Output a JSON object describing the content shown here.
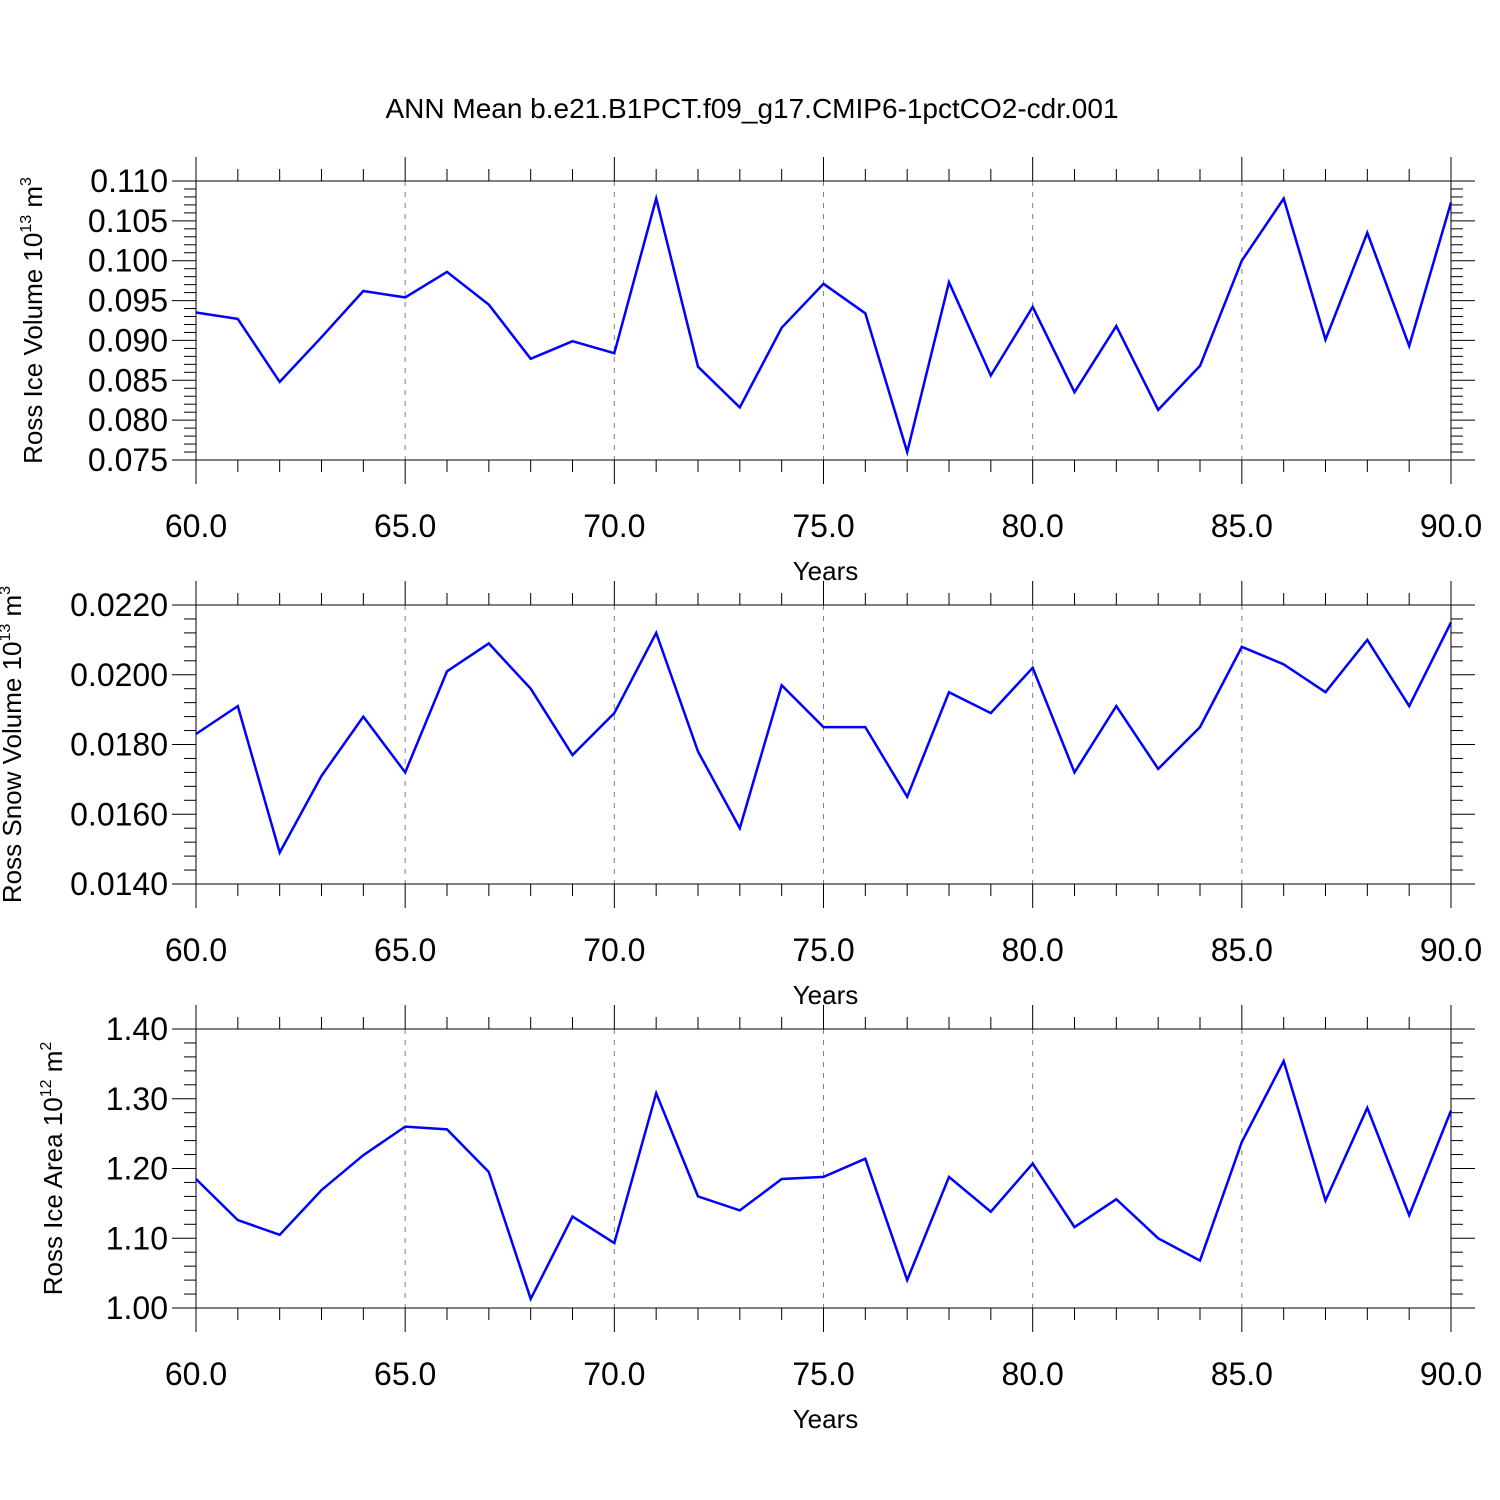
{
  "title": "ANN Mean b.e21.B1PCT.f09_g17.CMIP6-1pctCO2-cdr.001",
  "colors": {
    "line": "#0000ff",
    "axis": "#000000",
    "grid": "#808080"
  },
  "chart_data": [
    {
      "type": "line",
      "xlabel": "Years",
      "ylabel": {
        "text": "Ross Ice Volume 10",
        "exp": "13",
        "unit": " m",
        "unit_exp": "3"
      },
      "xlim": [
        60,
        90
      ],
      "ylim": [
        0.075,
        0.11
      ],
      "xticks": [
        60,
        65,
        70,
        75,
        80,
        85,
        90
      ],
      "xtick_labels": [
        "60.0",
        "65.0",
        "70.0",
        "75.0",
        "80.0",
        "85.0",
        "90.0"
      ],
      "yticks": [
        0.075,
        0.08,
        0.085,
        0.09,
        0.095,
        0.1,
        0.105,
        0.11
      ],
      "ytick_labels": [
        "0.075",
        "0.080",
        "0.085",
        "0.090",
        "0.095",
        "0.100",
        "0.105",
        "0.110"
      ],
      "x": [
        60,
        61,
        62,
        63,
        64,
        65,
        66,
        67,
        68,
        69,
        70,
        71,
        72,
        73,
        74,
        75,
        76,
        77,
        78,
        79,
        80,
        81,
        82,
        83,
        84,
        85,
        86,
        87,
        88,
        89,
        90
      ],
      "values": [
        0.0935,
        0.0927,
        0.0848,
        0.0904,
        0.0962,
        0.0954,
        0.0986,
        0.0945,
        0.0877,
        0.0899,
        0.0884,
        0.1078,
        0.0867,
        0.0816,
        0.0916,
        0.0971,
        0.0934,
        0.076,
        0.0973,
        0.0856,
        0.0942,
        0.0835,
        0.0918,
        0.0813,
        0.0868,
        0.1,
        0.1078,
        0.0901,
        0.1035,
        0.0893,
        0.1073
      ]
    },
    {
      "type": "line",
      "xlabel": "Years",
      "ylabel": {
        "text": "Ross Snow Volume 10",
        "exp": "13",
        "unit": " m",
        "unit_exp": "3"
      },
      "xlim": [
        60,
        90
      ],
      "ylim": [
        0.014,
        0.022
      ],
      "xticks": [
        60,
        65,
        70,
        75,
        80,
        85,
        90
      ],
      "xtick_labels": [
        "60.0",
        "65.0",
        "70.0",
        "75.0",
        "80.0",
        "85.0",
        "90.0"
      ],
      "yticks": [
        0.014,
        0.016,
        0.018,
        0.02,
        0.022
      ],
      "ytick_labels": [
        "0.0140",
        "0.0160",
        "0.0180",
        "0.0200",
        "0.0220"
      ],
      "x": [
        60,
        61,
        62,
        63,
        64,
        65,
        66,
        67,
        68,
        69,
        70,
        71,
        72,
        73,
        74,
        75,
        76,
        77,
        78,
        79,
        80,
        81,
        82,
        83,
        84,
        85,
        86,
        87,
        88,
        89,
        90
      ],
      "values": [
        0.0183,
        0.0191,
        0.0149,
        0.0171,
        0.0188,
        0.0172,
        0.0201,
        0.0209,
        0.0196,
        0.0177,
        0.0189,
        0.0212,
        0.0178,
        0.0156,
        0.0197,
        0.0185,
        0.0185,
        0.0165,
        0.0195,
        0.0189,
        0.0202,
        0.0172,
        0.0191,
        0.0173,
        0.0185,
        0.0208,
        0.0203,
        0.0195,
        0.021,
        0.0191,
        0.0215
      ]
    },
    {
      "type": "line",
      "xlabel": "Years",
      "ylabel": {
        "text": "Ross Ice Area 10",
        "exp": "12",
        "unit": " m",
        "unit_exp": "2"
      },
      "xlim": [
        60,
        90
      ],
      "ylim": [
        1.0,
        1.4
      ],
      "xticks": [
        60,
        65,
        70,
        75,
        80,
        85,
        90
      ],
      "xtick_labels": [
        "60.0",
        "65.0",
        "70.0",
        "75.0",
        "80.0",
        "85.0",
        "90.0"
      ],
      "yticks": [
        1.0,
        1.1,
        1.2,
        1.3,
        1.4
      ],
      "ytick_labels": [
        "1.00",
        "1.10",
        "1.20",
        "1.30",
        "1.40"
      ],
      "x": [
        60,
        61,
        62,
        63,
        64,
        65,
        66,
        67,
        68,
        69,
        70,
        71,
        72,
        73,
        74,
        75,
        76,
        77,
        78,
        79,
        80,
        81,
        82,
        83,
        84,
        85,
        86,
        87,
        88,
        89,
        90
      ],
      "values": [
        1.185,
        1.126,
        1.105,
        1.169,
        1.219,
        1.26,
        1.256,
        1.195,
        1.013,
        1.131,
        1.093,
        1.308,
        1.16,
        1.14,
        1.185,
        1.188,
        1.214,
        1.04,
        1.188,
        1.138,
        1.207,
        1.116,
        1.156,
        1.1,
        1.068,
        1.238,
        1.354,
        1.154,
        1.287,
        1.133,
        1.283
      ]
    }
  ]
}
